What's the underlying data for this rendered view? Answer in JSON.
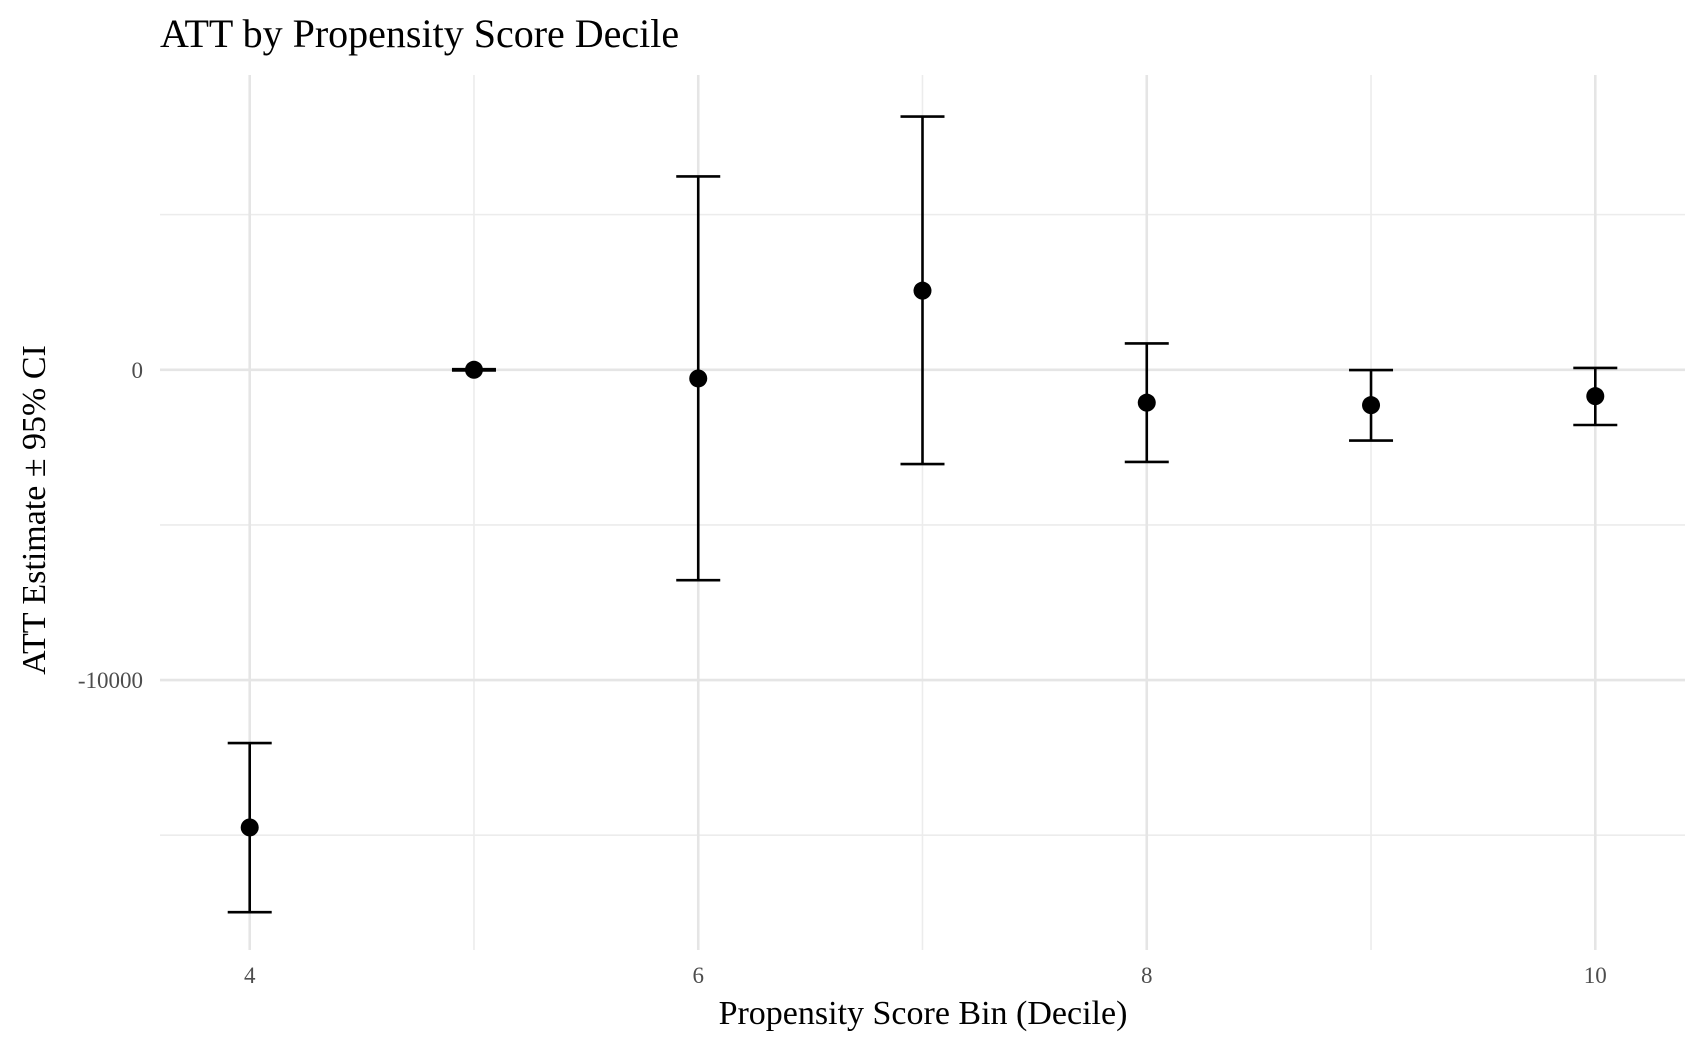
{
  "chart_data": {
    "type": "scatter",
    "title": "ATT by Propensity Score Decile",
    "xlabel": "Propensity Score Bin (Decile)",
    "ylabel": "ATT Estimate ± 95% CI",
    "x_ticks": [
      4,
      6,
      8,
      10
    ],
    "x_tick_labels": [
      "4",
      "6",
      "8",
      "10"
    ],
    "x_minor_ticks": [
      5,
      7,
      9
    ],
    "xlim": [
      3.6,
      10.4
    ],
    "y_ticks": [
      0,
      -10000
    ],
    "y_tick_labels": [
      "0",
      "-10000"
    ],
    "y_minor_ticks": [
      5000,
      -5000,
      -15000
    ],
    "ylim": [
      -18700,
      9500
    ],
    "grid": true,
    "legend": "none",
    "series": [
      {
        "points": [
          {
            "x": 4,
            "y": -14750,
            "lower": -17480,
            "upper": -12030
          },
          {
            "x": 5,
            "y": 0,
            "lower": -20,
            "upper": 20
          },
          {
            "x": 6,
            "y": -280,
            "lower": -6780,
            "upper": 6230
          },
          {
            "x": 7,
            "y": 2550,
            "lower": -3040,
            "upper": 8160
          },
          {
            "x": 8,
            "y": -1060,
            "lower": -2970,
            "upper": 850
          },
          {
            "x": 9,
            "y": -1140,
            "lower": -2280,
            "upper": -10
          },
          {
            "x": 10,
            "y": -850,
            "lower": -1780,
            "upper": 60
          }
        ]
      }
    ],
    "colors": {
      "points": "#000000",
      "errorbars": "#000000",
      "grid": "#e5e5e5",
      "tick_text": "#4d4d4d",
      "background": "#ffffff"
    }
  }
}
